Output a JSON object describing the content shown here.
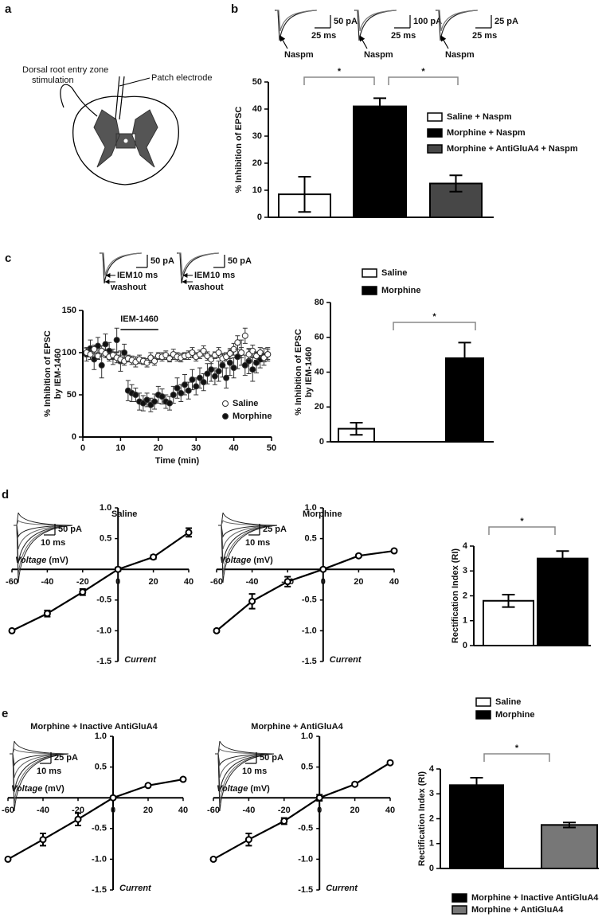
{
  "panel_labels": [
    "a",
    "b",
    "c",
    "d",
    "e"
  ],
  "diagram": {
    "labels": [
      "Dorsal root entry zone",
      "stimulation",
      "Patch electrode"
    ]
  },
  "chart_data": [
    {
      "type": "bar",
      "ylabel": "% Inhibition of EPSC",
      "categories": [
        null,
        null,
        null
      ],
      "values": [
        8.5,
        41,
        12.5
      ],
      "errors": [
        6.5,
        3,
        3
      ],
      "colors": [
        "#ffffff",
        "#000000",
        "#474747"
      ],
      "legend": [
        "Saline + Naspm",
        "Morphine + Naspm",
        "Morphine + AntiGluA4 + Naspm"
      ],
      "ylim": [
        0,
        50
      ],
      "yticks": [
        0,
        10,
        20,
        30,
        40,
        50
      ],
      "significance": [
        "*",
        "*"
      ],
      "insets": [
        {
          "y_scale": "50 pA",
          "x_scale": "25 ms",
          "arrow": "Naspm"
        },
        {
          "y_scale": "100 pA",
          "x_scale": "25 ms",
          "arrow": "Naspm"
        },
        {
          "y_scale": "25 pA",
          "x_scale": "25 ms",
          "arrow": "Naspm"
        }
      ]
    },
    {
      "type": "scatter",
      "xlabel": "Time (min)",
      "ylabel": [
        "% Inhibition of EPSC",
        "by IEM-1460"
      ],
      "x": [
        1,
        2,
        3,
        4,
        5,
        6,
        7,
        8,
        9,
        10,
        11,
        12,
        13,
        14,
        15,
        16,
        17,
        18,
        19,
        20,
        21,
        22,
        23,
        24,
        25,
        26,
        27,
        28,
        29,
        30,
        31,
        32,
        33,
        34,
        35,
        36,
        37,
        38,
        39,
        40,
        41,
        42,
        43,
        44,
        45,
        46,
        47,
        48,
        49
      ],
      "series": [
        {
          "name": "Saline",
          "marker": "open-circle",
          "values": [
            100,
            98,
            104,
            96,
            102,
            99,
            95,
            97,
            94,
            92,
            90,
            93,
            91,
            89,
            92,
            90,
            88,
            94,
            90,
            96,
            95,
            97,
            93,
            98,
            95,
            94,
            96,
            97,
            100,
            95,
            98,
            102,
            96,
            92,
            97,
            100,
            93,
            95,
            99,
            104,
            112,
            100,
            120,
            98,
            102,
            96,
            100,
            94,
            98
          ],
          "errors": [
            5,
            6,
            5,
            4,
            6,
            5,
            5,
            4,
            6,
            5,
            5,
            4,
            5,
            6,
            5,
            4,
            5,
            6,
            5,
            4,
            5,
            5,
            4,
            6,
            5,
            5,
            4,
            5,
            6,
            5,
            5,
            6,
            5,
            5,
            4,
            6,
            5,
            5,
            6,
            7,
            8,
            6,
            9,
            6,
            7,
            5,
            6,
            5,
            6
          ]
        },
        {
          "name": "Morphine",
          "marker": "filled-circle",
          "values": [
            98,
            105,
            92,
            108,
            85,
            110,
            102,
            95,
            115,
            90,
            100,
            55,
            52,
            50,
            42,
            40,
            44,
            38,
            42,
            50,
            48,
            42,
            40,
            50,
            58,
            52,
            62,
            55,
            68,
            60,
            70,
            65,
            75,
            80,
            72,
            78,
            85,
            70,
            88,
            82,
            95,
            100,
            85,
            90,
            80,
            88,
            92,
            95,
            98
          ],
          "errors": [
            8,
            10,
            12,
            10,
            15,
            12,
            10,
            9,
            14,
            12,
            10,
            12,
            10,
            8,
            10,
            9,
            8,
            8,
            9,
            10,
            9,
            8,
            8,
            10,
            12,
            10,
            12,
            10,
            12,
            10,
            12,
            10,
            12,
            14,
            10,
            12,
            14,
            12,
            15,
            12,
            14,
            15,
            12,
            15,
            14,
            12,
            10,
            10,
            8
          ]
        }
      ],
      "xlim": [
        0,
        50
      ],
      "xticks": [
        0,
        10,
        20,
        30,
        40,
        50
      ],
      "ylim": [
        0,
        150
      ],
      "yticks": [
        0,
        50,
        100,
        150
      ],
      "drug": {
        "label": "IEM-1460",
        "x": [
          10,
          20
        ]
      },
      "insets": [
        {
          "y_scale": "50 pA",
          "x_scale": "10 ms",
          "labels": [
            "IEM",
            "washout"
          ]
        },
        {
          "y_scale": "50 pA",
          "x_scale": "10 ms",
          "labels": [
            "IEM",
            "washout"
          ]
        }
      ]
    },
    {
      "type": "bar",
      "ylabel": [
        "% Inhibition of EPSC",
        "by IEM-1460"
      ],
      "categories": [
        null,
        null
      ],
      "values": [
        7.5,
        48
      ],
      "errors": [
        3.5,
        9
      ],
      "colors": [
        "#ffffff",
        "#000000"
      ],
      "legend": [
        "Saline",
        "Morphine"
      ],
      "ylim": [
        0,
        80
      ],
      "yticks": [
        0,
        20,
        40,
        60,
        80
      ],
      "significance": [
        "*"
      ]
    },
    {
      "type": "line",
      "title": "Saline",
      "xlabel": "Voltage",
      "xlabel_unit": "(mV)",
      "ylabel": "Current",
      "x": [
        -60,
        -40,
        -20,
        0,
        20,
        40
      ],
      "values": [
        -1,
        -0.72,
        -0.37,
        0,
        0.2,
        0.6
      ],
      "errors": [
        0.02,
        0.05,
        0.05,
        0.03,
        0.03,
        0.07
      ],
      "xlim": [
        -60,
        40
      ],
      "xticks": [
        -60,
        -40,
        -20,
        0,
        20,
        40
      ],
      "ylim": [
        -1.5,
        1
      ],
      "yticks": [
        {
          "value": 1,
          "label": "1.0"
        },
        0.5,
        -0.5,
        {
          "value": -1,
          "label": "-1.0"
        },
        -1.5
      ],
      "inset": {
        "y_scale": "50 pA",
        "x_scale": "10 ms"
      }
    },
    {
      "type": "line",
      "title": "Morphine",
      "xlabel": "Voltage",
      "xlabel_unit": "(mV)",
      "ylabel": "Current",
      "x": [
        -60,
        -40,
        -20,
        0,
        20,
        40
      ],
      "values": [
        -1,
        -0.52,
        -0.2,
        0,
        0.22,
        0.3
      ],
      "errors": [
        0.02,
        0.12,
        0.08,
        0.02,
        0.02,
        0.02
      ],
      "xlim": [
        -60,
        40
      ],
      "xticks": [
        -60,
        -40,
        -20,
        0,
        20,
        40
      ],
      "ylim": [
        -1.5,
        1
      ],
      "yticks": [
        {
          "value": 1,
          "label": "1.0"
        },
        0.5,
        -0.5,
        {
          "value": -1,
          "label": "-1.0"
        },
        -1.5
      ],
      "inset": {
        "y_scale": "25 pA",
        "x_scale": "10 ms"
      }
    },
    {
      "type": "bar",
      "ylabel": "Rectification Index (RI)",
      "categories": [
        null,
        null
      ],
      "values": [
        1.8,
        3.5
      ],
      "errors": [
        0.25,
        0.3
      ],
      "colors": [
        "#ffffff",
        "#000000"
      ],
      "legend": [
        "Saline",
        "Morphine"
      ],
      "ylim": [
        0,
        4
      ],
      "yticks": [
        0,
        1,
        2,
        3,
        4
      ],
      "significance": [
        "*"
      ]
    },
    {
      "type": "line",
      "title": "Morphine + Inactive AntiGluA4",
      "xlabel": "Voltage",
      "xlabel_unit": "(mV)",
      "ylabel": "Current",
      "x": [
        -60,
        -40,
        -20,
        0,
        20,
        40
      ],
      "values": [
        -1,
        -0.68,
        -0.35,
        0,
        0.2,
        0.3
      ],
      "errors": [
        0.02,
        0.1,
        0.1,
        0.02,
        0.02,
        0.02
      ],
      "xlim": [
        -60,
        40
      ],
      "xticks": [
        -60,
        -40,
        -20,
        0,
        20,
        40
      ],
      "ylim": [
        -1.5,
        1
      ],
      "yticks": [
        {
          "value": 1,
          "label": "1.0"
        },
        0.5,
        -0.5,
        {
          "value": -1,
          "label": "-1.0"
        },
        -1.5
      ],
      "inset": {
        "y_scale": "25 pA",
        "x_scale": "10 ms"
      }
    },
    {
      "type": "line",
      "title": "Morphine + AntiGluA4",
      "xlabel": "Voltage",
      "xlabel_unit": "(mV)",
      "ylabel": "Current",
      "x": [
        -60,
        -40,
        -20,
        0,
        20,
        40
      ],
      "values": [
        -1,
        -0.68,
        -0.38,
        0,
        0.22,
        0.57
      ],
      "errors": [
        0.02,
        0.1,
        0.05,
        0.05,
        0.02,
        0.02
      ],
      "xlim": [
        -60,
        40
      ],
      "xticks": [
        -60,
        -40,
        -20,
        0,
        20,
        40
      ],
      "ylim": [
        -1.5,
        1
      ],
      "yticks": [
        {
          "value": 1,
          "label": "1.0"
        },
        0.5,
        -0.5,
        {
          "value": -1,
          "label": "-1.0"
        },
        -1.5
      ],
      "inset": {
        "y_scale": "50 pA",
        "x_scale": "10 ms"
      }
    },
    {
      "type": "bar",
      "ylabel": "Rectification Index (RI)",
      "categories": [
        null,
        null
      ],
      "values": [
        3.35,
        1.75
      ],
      "errors": [
        0.3,
        0.1
      ],
      "colors": [
        "#000000",
        "#777777"
      ],
      "legend": [
        "Morphine + Inactive AntiGluA4",
        "Morphine + AntiGluA4"
      ],
      "ylim": [
        0,
        4
      ],
      "yticks": [
        0,
        1,
        2,
        3,
        4
      ],
      "significance": [
        "*"
      ]
    }
  ]
}
